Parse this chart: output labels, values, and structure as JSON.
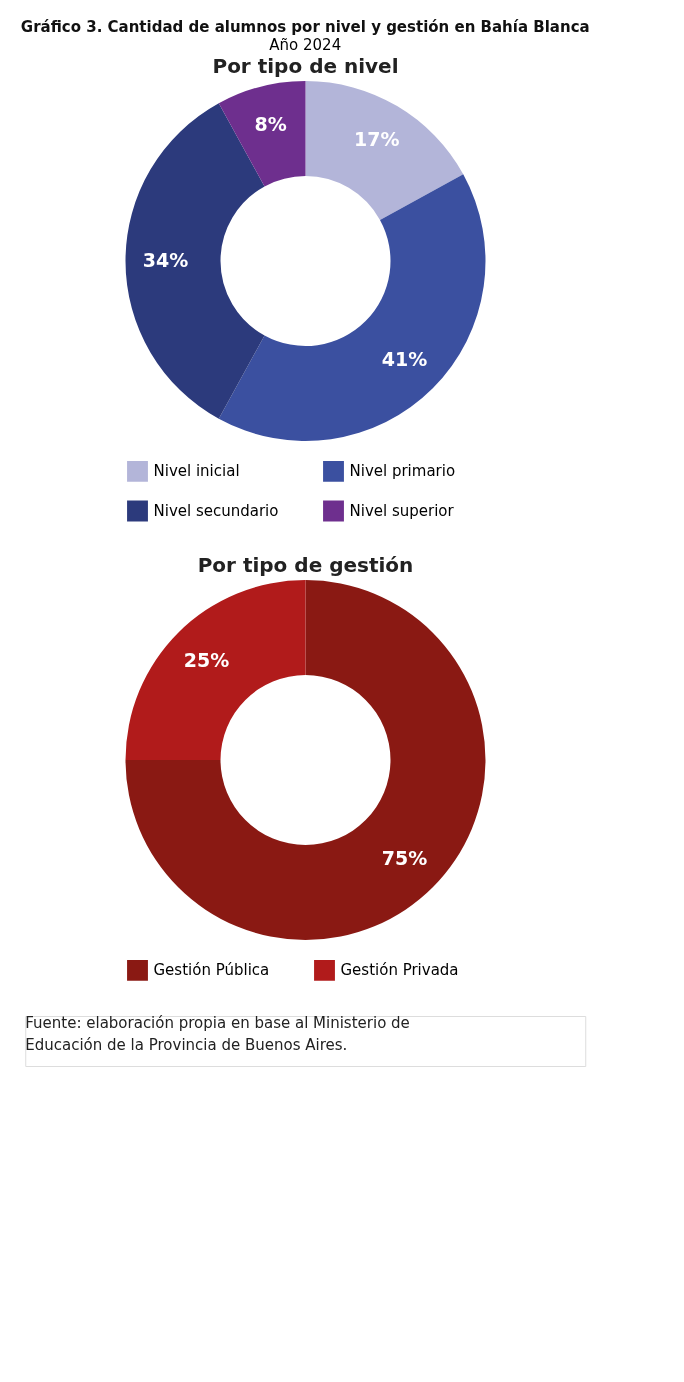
{
  "chart_data": [
    {
      "type": "donut",
      "title": "Gráfico 3. Cantidad de alumnos por nivel y gestión en Bahía Blanca",
      "subtitle": "Año 2024",
      "annotations": [
        "Por tipo de nivel"
      ],
      "categories": [
        "Nivel inicial",
        "Nivel primario",
        "Nivel secundario",
        "Nivel superior"
      ],
      "values": [
        17,
        41,
        34,
        8
      ],
      "value_labels": [
        "17%",
        "41%",
        "34%",
        "8%"
      ],
      "colors": [
        "#b3b5d9",
        "#3b50a0",
        "#2c3a7c",
        "#6e2f8e"
      ],
      "legend": "bottom"
    },
    {
      "type": "donut",
      "title": "Por tipo de gestión",
      "annotations": [
        "Fuente: elaboración propia en base al Ministerio de Educación de la Provincia de Buenos Aires."
      ],
      "categories": [
        "Gestión Pública",
        "Gestión Privada"
      ],
      "values": [
        75,
        25
      ],
      "value_labels": [
        "75%",
        "25%"
      ],
      "colors": [
        "#8a1913",
        "#b11b1b"
      ],
      "legend": "bottom"
    }
  ]
}
